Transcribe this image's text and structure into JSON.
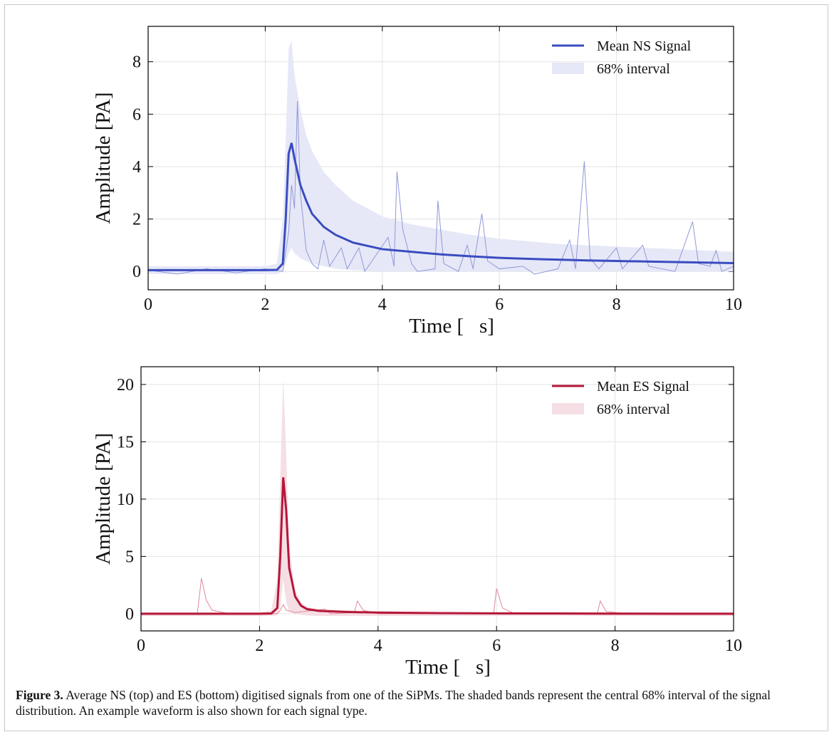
{
  "chart_data": [
    {
      "type": "line",
      "xlabel": "Time [   s]",
      "ylabel": "Amplitude [PA]",
      "xlim": [
        0,
        10
      ],
      "ylim": [
        -0.7,
        9.35
      ],
      "xticks": [
        0,
        2,
        4,
        6,
        8,
        10
      ],
      "yticks": [
        0,
        2,
        4,
        6,
        8
      ],
      "grid": true,
      "legend": "upper right",
      "x": [
        0,
        0.5,
        1,
        1.5,
        2,
        2.2,
        2.3,
        2.35,
        2.4,
        2.45,
        2.5,
        2.6,
        2.7,
        2.8,
        3,
        3.2,
        3.5,
        4,
        4.5,
        5,
        5.5,
        6,
        6.5,
        7,
        7.5,
        8,
        8.5,
        9,
        9.5,
        10
      ],
      "series": [
        {
          "name": "Mean NS Signal",
          "color": "#3a4cc0",
          "values": [
            0.05,
            0.05,
            0.05,
            0.05,
            0.05,
            0.06,
            0.3,
            2,
            4.5,
            4.9,
            4.3,
            3.3,
            2.7,
            2.2,
            1.7,
            1.4,
            1.1,
            0.85,
            0.75,
            0.65,
            0.58,
            0.52,
            0.48,
            0.45,
            0.42,
            0.4,
            0.38,
            0.36,
            0.34,
            0.32
          ]
        }
      ],
      "band": {
        "name": "68% interval",
        "color": "#e6e8f7",
        "lower": [
          -0.1,
          -0.1,
          -0.1,
          -0.1,
          -0.1,
          -0.1,
          0,
          0.3,
          0.7,
          0.9,
          0.7,
          0.5,
          0.4,
          0.3,
          0.2,
          0.1,
          0.05,
          0,
          0,
          0,
          0,
          0,
          0,
          0,
          0,
          0,
          0,
          0,
          0,
          0
        ],
        "upper": [
          0.2,
          0.2,
          0.2,
          0.2,
          0.2,
          0.3,
          2,
          5,
          8.5,
          8.8,
          7.5,
          6.2,
          5.2,
          4.6,
          3.8,
          3.3,
          2.7,
          2.1,
          1.8,
          1.6,
          1.4,
          1.25,
          1.15,
          1.05,
          1,
          0.95,
          0.9,
          0.85,
          0.8,
          0.75
        ]
      },
      "example": {
        "color": "#8f98d8",
        "x": [
          0,
          0.5,
          1,
          1.5,
          2,
          2.3,
          2.4,
          2.45,
          2.5,
          2.55,
          2.6,
          2.7,
          2.8,
          2.9,
          3,
          3.1,
          3.3,
          3.4,
          3.6,
          3.7,
          4.1,
          4.2,
          4.25,
          4.35,
          4.5,
          4.6,
          4.9,
          4.95,
          5.05,
          5.3,
          5.45,
          5.55,
          5.7,
          5.8,
          6,
          6.4,
          6.6,
          7,
          7.2,
          7.3,
          7.45,
          7.55,
          7.7,
          8,
          8.1,
          8.45,
          8.55,
          9,
          9.3,
          9.4,
          9.6,
          9.7,
          9.8,
          10
        ],
        "values": [
          0.05,
          -0.1,
          0.1,
          -0.05,
          0.1,
          0,
          1.5,
          3.3,
          2.4,
          6.5,
          3,
          0.8,
          0.3,
          0.1,
          1.2,
          0.2,
          0.9,
          0.1,
          0.9,
          0,
          1.3,
          0.2,
          3.8,
          1.6,
          0.3,
          0,
          0.1,
          2.7,
          0.3,
          0,
          1,
          0.1,
          2.2,
          0.4,
          0.1,
          0.2,
          -0.1,
          0.1,
          1.2,
          0.1,
          4.2,
          0.5,
          0.1,
          0.9,
          0.1,
          1,
          0.2,
          0,
          1.9,
          0.3,
          0.2,
          0.8,
          0,
          0.2
        ]
      }
    },
    {
      "type": "line",
      "xlabel": "Time [   s]",
      "ylabel": "Amplitude [PA]",
      "xlim": [
        0,
        10
      ],
      "ylim": [
        -1.5,
        21.55
      ],
      "xticks": [
        0,
        2,
        4,
        6,
        8,
        10
      ],
      "yticks": [
        0,
        5,
        10,
        15,
        20
      ],
      "grid": true,
      "legend": "upper right",
      "x": [
        0,
        1,
        2,
        2.2,
        2.3,
        2.35,
        2.4,
        2.45,
        2.5,
        2.6,
        2.7,
        2.8,
        3,
        3.5,
        4,
        5,
        6,
        7,
        8,
        9,
        10
      ],
      "series": [
        {
          "name": "Mean ES Signal",
          "color": "#b5173a",
          "values": [
            0,
            0,
            0,
            0.02,
            0.5,
            5,
            11.9,
            9,
            4,
            1.5,
            0.7,
            0.4,
            0.25,
            0.15,
            0.1,
            0.05,
            0.03,
            0.02,
            0.01,
            0,
            0
          ]
        }
      ],
      "band": {
        "name": "68% interval",
        "color": "#f5dfe4",
        "lower": [
          -0.2,
          -0.2,
          -0.2,
          -0.2,
          -0.1,
          0.5,
          3,
          1,
          0.2,
          0,
          -0.1,
          -0.15,
          -0.2,
          -0.2,
          -0.2,
          -0.2,
          -0.2,
          -0.2,
          -0.2,
          -0.2,
          -0.2
        ],
        "upper": [
          0.1,
          0.1,
          0.1,
          0.3,
          3,
          12,
          20.5,
          14,
          6,
          2,
          1,
          0.6,
          0.4,
          0.3,
          0.2,
          0.15,
          0.1,
          0.1,
          0.1,
          0.1,
          0.1
        ]
      },
      "example": {
        "color": "#e08a9c",
        "x": [
          0,
          0.95,
          1.02,
          1.1,
          1.2,
          1.5,
          2.3,
          2.35,
          2.4,
          2.45,
          2.6,
          3.1,
          3.2,
          3.6,
          3.65,
          3.75,
          4,
          5.95,
          6,
          6.1,
          6.3,
          7.7,
          7.75,
          7.85,
          8.2,
          10
        ],
        "values": [
          0,
          0,
          3.1,
          1.2,
          0.3,
          0,
          0,
          0.3,
          0.8,
          0.3,
          0.1,
          0.4,
          0,
          0.1,
          1.1,
          0.3,
          0,
          0,
          2.2,
          0.5,
          0,
          0,
          1.1,
          0.2,
          0,
          0
        ]
      }
    }
  ],
  "caption": {
    "label": "Figure 3.",
    "text": "Average NS (top) and ES (bottom) digitised signals from one of the SiPMs. The shaded bands represent the central 68% interval of the signal distribution. An example waveform is also shown for each signal type."
  }
}
